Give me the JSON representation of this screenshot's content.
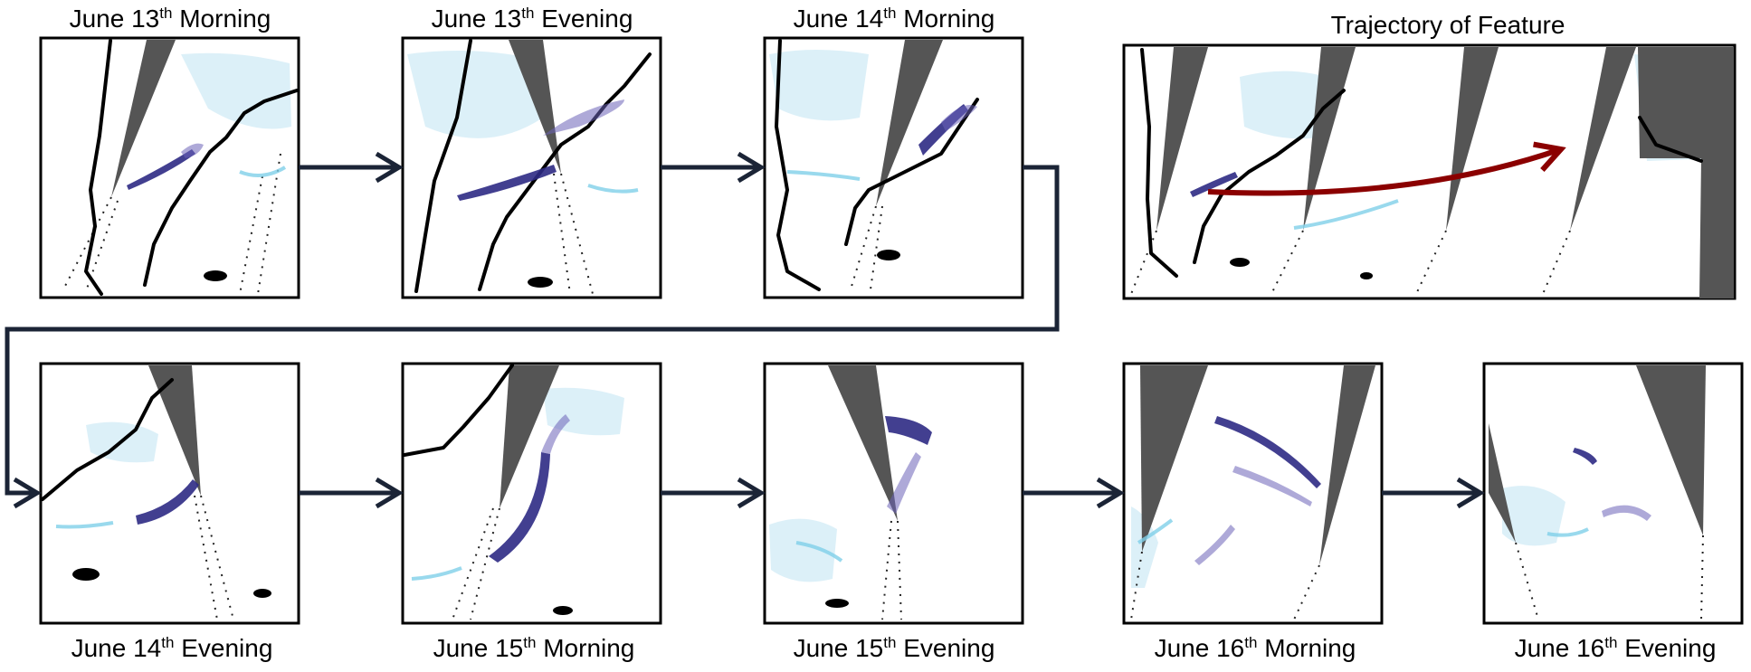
{
  "panels": [
    {
      "prefix": "June 13",
      "suffix": "th",
      "period": "Morning"
    },
    {
      "prefix": "June 13",
      "suffix": "th",
      "period": "Evening"
    },
    {
      "prefix": "June 14",
      "suffix": "th",
      "period": "Morning"
    },
    {
      "prefix": "June 14",
      "suffix": "th",
      "period": "Evening"
    },
    {
      "prefix": "June 15",
      "suffix": "th",
      "period": "Morning"
    },
    {
      "prefix": "June 15",
      "suffix": "th",
      "period": "Evening"
    },
    {
      "prefix": "June 16",
      "suffix": "th",
      "period": "Morning"
    },
    {
      "prefix": "June 16",
      "suffix": "th",
      "period": "Evening"
    }
  ],
  "trajectory": {
    "title": "Trajectory of Feature"
  },
  "colors": {
    "swath": "#555555",
    "feature": "#2d2a84",
    "cyan_feature": "#7fd0e8",
    "connector": "#1b2436",
    "trajectory_arrow": "#8b0000"
  }
}
